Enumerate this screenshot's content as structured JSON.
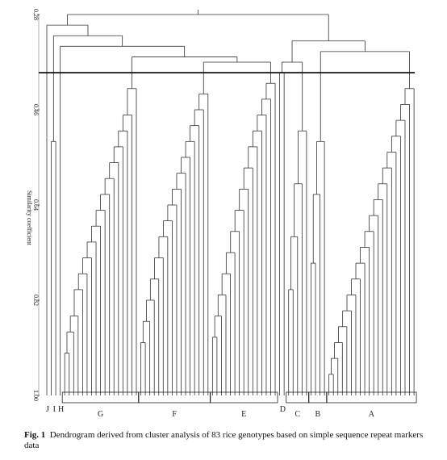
{
  "chart_data": {
    "type": "dendrogram",
    "ylabel": "Similarity coefficient",
    "ylim": [
      0.28,
      1
    ],
    "yticks": [
      0.28,
      0.46,
      0.64,
      0.82,
      {
        "value": 1,
        "label": "1.00"
      }
    ],
    "cutoff": 0.39,
    "tree": {
      "h": 0.28,
      "c": [
        {
          "h": 0.3,
          "c": [
            {
              "name": "J",
              "merges": []
            },
            {
              "h": 0.32,
              "c": [
                {
                  "name": "I",
                  "merges": [
                    0.52
                  ]
                },
                {
                  "h": 0.34,
                  "c": [
                    {
                      "name": "H",
                      "merges": []
                    },
                    {
                      "h": 0.36,
                      "c": [
                        {
                          "name": "G",
                          "merges": [
                            0.92,
                            0.88,
                            0.85,
                            0.8,
                            0.77,
                            0.74,
                            0.71,
                            0.68,
                            0.65,
                            0.62,
                            0.59,
                            0.56,
                            0.53,
                            0.5,
                            0.47,
                            0.42
                          ]
                        },
                        {
                          "h": 0.37,
                          "c": [
                            {
                              "name": "F",
                              "merges": [
                                0.9,
                                0.86,
                                0.82,
                                0.78,
                                0.74,
                                0.7,
                                0.67,
                                0.64,
                                0.61,
                                0.58,
                                0.55,
                                0.52,
                                0.49,
                                0.46,
                                0.43
                              ]
                            },
                            {
                              "name": "E",
                              "merges": [
                                0.89,
                                0.85,
                                0.81,
                                0.77,
                                0.73,
                                0.69,
                                0.65,
                                0.61,
                                0.57,
                                0.53,
                                0.5,
                                0.47,
                                0.44,
                                0.41
                              ]
                            }
                          ]
                        }
                      ]
                    }
                  ]
                }
              ]
            }
          ]
        },
        {
          "h": 0.33,
          "c": [
            {
              "h": 0.37,
              "c": [
                {
                  "name": "D",
                  "merges": [
                    0.39
                  ]
                },
                {
                  "name": "C",
                  "merges": [
                    0.8,
                    0.7,
                    0.6,
                    0.5
                  ]
                }
              ]
            },
            {
              "h": 0.35,
              "c": [
                {
                  "name": "B",
                  "merges": [
                    0.75,
                    0.62,
                    0.52
                  ]
                },
                {
                  "name": "A",
                  "merges": [
                    0.96,
                    0.93,
                    0.9,
                    0.87,
                    0.84,
                    0.81,
                    0.78,
                    0.75,
                    0.72,
                    0.69,
                    0.66,
                    0.63,
                    0.6,
                    0.57,
                    0.54,
                    0.51,
                    0.48,
                    0.45,
                    0.42
                  ]
                }
              ]
            }
          ]
        }
      ]
    }
  },
  "caption": {
    "label": "Fig. 1",
    "text": "Dendrogram derived from cluster analysis of 83 rice genotypes based on simple sequence repeat markers data"
  }
}
